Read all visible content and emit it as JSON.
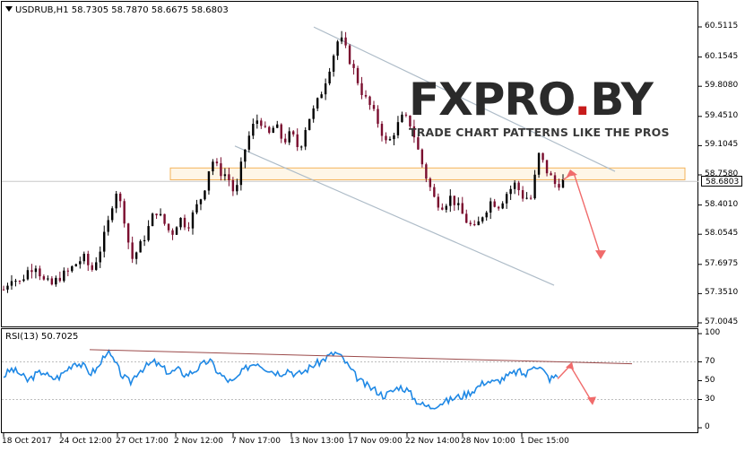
{
  "header": {
    "symbol": "USDRUB,H1",
    "open": "58.7305",
    "high": "58.7870",
    "low": "58.6675",
    "close": "58.6803"
  },
  "rsi": {
    "label": "RSI(13) 50.7025",
    "ticks": [
      "100",
      "70",
      "50",
      "30",
      "0"
    ]
  },
  "price_axis": {
    "ticks": [
      "60.5115",
      "60.1545",
      "59.8080",
      "59.4510",
      "59.1045",
      "58.7580",
      "58.4010",
      "58.0545",
      "57.6975",
      "57.3510",
      "57.0045"
    ],
    "current": "58.6803"
  },
  "time_axis": {
    "ticks": [
      "18 Oct 2017",
      "24 Oct 12:00",
      "27 Oct 17:00",
      "2 Nov 12:00",
      "7 Nov 17:00",
      "13 Nov 13:00",
      "17 Nov 09:00",
      "22 Nov 14:00",
      "28 Nov 10:00",
      "1 Dec 15:00"
    ]
  },
  "watermark": {
    "brand_left": "FXPRO",
    "brand_dot": ".",
    "brand_right": "BY",
    "tagline": "TRADE CHART PATTERNS LIKE THE PROS"
  },
  "colors": {
    "bull": "#000000",
    "bear": "#7a0d2e",
    "rsi_line": "#1e88e5",
    "channel": "#aebcc8",
    "zone": "#f3b35a",
    "arrow": "#f06b6b",
    "trendline": "#9b4a4a"
  },
  "chart_data": {
    "type": "candlestick",
    "price_range": [
      57.0045,
      60.5115
    ],
    "close_series": [
      57.4,
      57.55,
      57.48,
      57.62,
      57.7,
      57.5,
      57.45,
      57.55,
      57.6,
      57.7,
      57.78,
      57.62,
      57.85,
      58.15,
      58.6,
      58.3,
      57.75,
      57.9,
      58.1,
      58.35,
      58.2,
      58.05,
      58.25,
      58.15,
      58.35,
      58.55,
      58.95,
      58.8,
      58.75,
      58.5,
      59.0,
      59.3,
      59.45,
      59.2,
      59.35,
      59.15,
      59.25,
      59.05,
      59.4,
      59.55,
      59.8,
      60.1,
      60.4,
      60.2,
      59.95,
      59.7,
      59.55,
      59.35,
      59.1,
      59.3,
      59.45,
      59.35,
      59.0,
      58.7,
      58.45,
      58.4,
      58.5,
      58.35,
      58.2,
      58.1,
      58.3,
      58.45,
      58.4,
      58.55,
      58.65,
      58.5,
      58.48,
      59.0,
      58.8,
      58.65,
      58.68
    ],
    "rsi_series": [
      55,
      62,
      58,
      50,
      56,
      60,
      52,
      54,
      62,
      70,
      66,
      58,
      64,
      82,
      70,
      55,
      48,
      60,
      65,
      70,
      64,
      58,
      62,
      56,
      60,
      66,
      72,
      60,
      52,
      48,
      58,
      66,
      70,
      64,
      60,
      58,
      62,
      56,
      60,
      66,
      70,
      76,
      80,
      72,
      60,
      50,
      44,
      40,
      34,
      38,
      44,
      40,
      30,
      24,
      22,
      26,
      28,
      32,
      34,
      38,
      44,
      50,
      48,
      52,
      56,
      60,
      56,
      68,
      62,
      52,
      55
    ],
    "rsi_range": [
      0,
      100
    ],
    "rsi_levels": [
      30,
      70
    ],
    "resistance_zone": [
      58.7,
      58.84
    ]
  }
}
